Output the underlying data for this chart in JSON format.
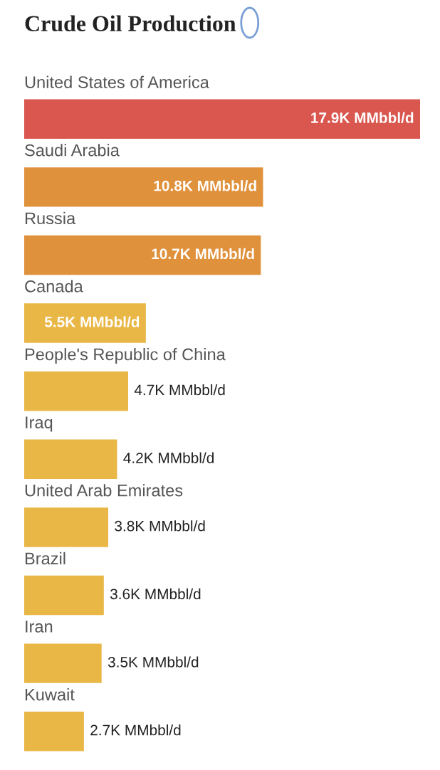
{
  "chart_data": {
    "type": "bar",
    "orientation": "horizontal",
    "title": "Crude Oil Production",
    "categories": [
      "United States of America",
      "Saudi Arabia",
      "Russia",
      "Canada",
      "People's Republic of China",
      "Iraq",
      "United Arab Emirates",
      "Brazil",
      "Iran",
      "Kuwait"
    ],
    "values": [
      17.9,
      10.8,
      10.7,
      5.5,
      4.7,
      4.2,
      3.8,
      3.6,
      3.5,
      2.7
    ],
    "colors": [
      "#d9574f",
      "#e0913c",
      "#e0913c",
      "#e9b746",
      "#e9b746",
      "#e9b746",
      "#e9b746",
      "#e9b746",
      "#e9b746",
      "#e9b746"
    ],
    "value_labels": [
      "17.9K MMbbl/d",
      "10.8K MMbbl/d",
      "10.7K MMbbl/d",
      "5.5K MMbbl/d",
      "4.7K MMbbl/d",
      "4.2K MMbbl/d",
      "3.8K MMbbl/d",
      "3.6K MMbbl/d",
      "3.5K MMbbl/d",
      "2.7K MMbbl/d"
    ],
    "data_labels": false
  }
}
